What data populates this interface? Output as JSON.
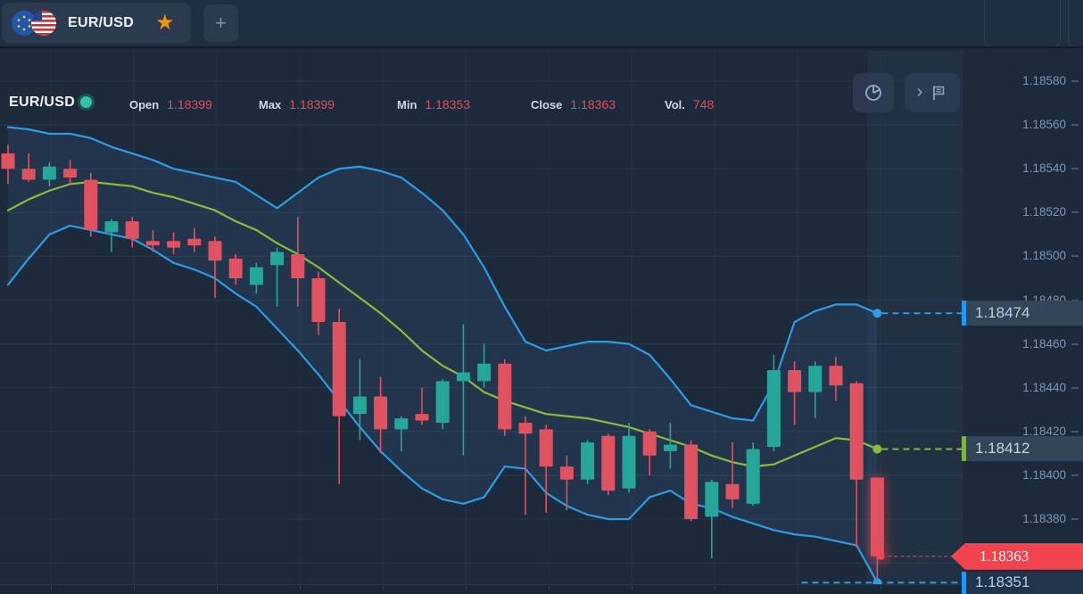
{
  "topbar": {
    "pair": "EUR/USD",
    "star_icon": "★",
    "add_button": "+"
  },
  "header": {
    "pair": "EUR/USD",
    "stats": [
      {
        "label": "Open",
        "value": "1.18399"
      },
      {
        "label": "Max",
        "value": "1.18399"
      },
      {
        "label": "Min",
        "value": "1.18353"
      },
      {
        "label": "Close",
        "value": "1.18363"
      },
      {
        "label": "Vol.",
        "value": "748"
      }
    ]
  },
  "colors": {
    "bull": "#26a69a",
    "bear": "#e0525f",
    "band": "#2d9ce3",
    "sma": "#8cba3a",
    "stat_value": "#e8495f",
    "label_blue": "#2196f3",
    "label_green": "#7cb342",
    "marker_red_bg": "#f2444f",
    "background": "#1c2a3b"
  },
  "axis": {
    "ticks": [
      "1.18580",
      "1.18560",
      "1.18540",
      "1.18520",
      "1.18500",
      "1.18480",
      "1.18460",
      "1.18440",
      "1.18420",
      "1.18400",
      "1.18380",
      "1.18360"
    ]
  },
  "markers": [
    {
      "value": "1.18474",
      "price": 1.18474,
      "kind": "bollinger-upper-end",
      "line": "#2d9ce3",
      "dot": true
    },
    {
      "value": "1.18412",
      "price": 1.18412,
      "kind": "sma-end",
      "line": "#8cba3a",
      "dot": true
    },
    {
      "value": "1.18363",
      "price": 1.18363,
      "kind": "last-price",
      "line": "#f2444f",
      "style": "thin",
      "glow": true
    },
    {
      "value": "1.18351",
      "price": 1.18351,
      "kind": "bollinger-lower-end",
      "line": "#2d9ce3",
      "dot": true,
      "extend": true
    }
  ],
  "chart_data": {
    "type": "candlestick",
    "pair": "EUR/USD",
    "last_candle": {
      "open": 1.18399,
      "high": 1.18399,
      "low": 1.18353,
      "close": 1.18363,
      "volume": 748
    },
    "y_axis": {
      "min": 1.1835,
      "max": 1.1859,
      "tick_step": 0.0002
    },
    "overlays": [
      "Bollinger Bands",
      "SMA"
    ],
    "candles": [
      [
        1.18547,
        1.18551,
        1.18533,
        1.1854
      ],
      [
        1.1854,
        1.18547,
        1.18534,
        1.18535
      ],
      [
        1.18535,
        1.18543,
        1.18532,
        1.18541
      ],
      [
        1.1854,
        1.18544,
        1.18533,
        1.18536
      ],
      [
        1.18535,
        1.18538,
        1.18509,
        1.18512
      ],
      [
        1.18511,
        1.18517,
        1.18502,
        1.18516
      ],
      [
        1.18516,
        1.18518,
        1.18504,
        1.18508
      ],
      [
        1.18507,
        1.18512,
        1.18502,
        1.18505
      ],
      [
        1.18507,
        1.18511,
        1.18501,
        1.18504
      ],
      [
        1.18508,
        1.18513,
        1.18502,
        1.18505
      ],
      [
        1.18507,
        1.18509,
        1.18481,
        1.18498
      ],
      [
        1.18499,
        1.18501,
        1.18487,
        1.1849
      ],
      [
        1.18487,
        1.18497,
        1.18483,
        1.18495
      ],
      [
        1.18496,
        1.18504,
        1.18477,
        1.18502
      ],
      [
        1.18501,
        1.18518,
        1.18477,
        1.1849
      ],
      [
        1.1849,
        1.18493,
        1.18464,
        1.1847
      ],
      [
        1.1847,
        1.18476,
        1.18396,
        1.18427
      ],
      [
        1.18428,
        1.18453,
        1.18416,
        1.18436
      ],
      [
        1.18436,
        1.18445,
        1.1841,
        1.18421
      ],
      [
        1.18421,
        1.18427,
        1.18411,
        1.18426
      ],
      [
        1.18428,
        1.1844,
        1.18423,
        1.18425
      ],
      [
        1.18424,
        1.18444,
        1.18421,
        1.18443
      ],
      [
        1.18443,
        1.18469,
        1.18409,
        1.18447
      ],
      [
        1.18443,
        1.1846,
        1.1844,
        1.18451
      ],
      [
        1.18451,
        1.18453,
        1.18418,
        1.18421
      ],
      [
        1.18424,
        1.18427,
        1.18382,
        1.18419
      ],
      [
        1.18421,
        1.18423,
        1.18383,
        1.18404
      ],
      [
        1.18404,
        1.18409,
        1.18384,
        1.18398
      ],
      [
        1.18398,
        1.18416,
        1.18396,
        1.18415
      ],
      [
        1.18418,
        1.18419,
        1.18391,
        1.18393
      ],
      [
        1.18394,
        1.18424,
        1.18392,
        1.18418
      ],
      [
        1.1842,
        1.18421,
        1.184,
        1.18409
      ],
      [
        1.18411,
        1.18424,
        1.18403,
        1.18414
      ],
      [
        1.18414,
        1.18416,
        1.18379,
        1.1838
      ],
      [
        1.18381,
        1.18398,
        1.18362,
        1.18397
      ],
      [
        1.18396,
        1.18415,
        1.18385,
        1.18389
      ],
      [
        1.18387,
        1.18415,
        1.18386,
        1.18412
      ],
      [
        1.18413,
        1.18455,
        1.18411,
        1.18448
      ],
      [
        1.18448,
        1.18452,
        1.18423,
        1.18438
      ],
      [
        1.18438,
        1.18452,
        1.18426,
        1.1845
      ],
      [
        1.1845,
        1.18454,
        1.18434,
        1.18441
      ],
      [
        1.18442,
        1.18443,
        1.18367,
        1.18398
      ],
      [
        1.18399,
        1.18399,
        1.18353,
        1.18363
      ]
    ],
    "bollinger": {
      "upper": [
        1.18559,
        1.18558,
        1.18556,
        1.18556,
        1.18554,
        1.1855,
        1.18547,
        1.18544,
        1.1854,
        1.18538,
        1.18536,
        1.18534,
        1.18528,
        1.18522,
        1.18529,
        1.18536,
        1.1854,
        1.18541,
        1.18539,
        1.18536,
        1.18529,
        1.18521,
        1.1851,
        1.18495,
        1.18477,
        1.18461,
        1.18457,
        1.18459,
        1.18461,
        1.18461,
        1.1846,
        1.18455,
        1.18444,
        1.18432,
        1.18429,
        1.18426,
        1.18425,
        1.18442,
        1.1847,
        1.18475,
        1.18478,
        1.18478,
        1.18474
      ],
      "middle": [
        1.18521,
        1.18526,
        1.1853,
        1.18533,
        1.18534,
        1.18533,
        1.18532,
        1.18529,
        1.18527,
        1.18524,
        1.18521,
        1.18516,
        1.18512,
        1.18506,
        1.18501,
        1.18495,
        1.18488,
        1.18481,
        1.18474,
        1.18466,
        1.18457,
        1.1845,
        1.18445,
        1.18438,
        1.18434,
        1.18431,
        1.18428,
        1.18427,
        1.18426,
        1.18424,
        1.18422,
        1.18419,
        1.18416,
        1.18413,
        1.18409,
        1.18406,
        1.18404,
        1.18405,
        1.18409,
        1.18413,
        1.18417,
        1.18416,
        1.18412
      ],
      "lower": [
        1.18487,
        1.18499,
        1.1851,
        1.18514,
        1.18512,
        1.1851,
        1.18508,
        1.18503,
        1.18497,
        1.18494,
        1.1849,
        1.18483,
        1.18477,
        1.18467,
        1.18457,
        1.18446,
        1.18434,
        1.18422,
        1.18411,
        1.18402,
        1.18394,
        1.18389,
        1.18387,
        1.1839,
        1.18404,
        1.18403,
        1.18392,
        1.18386,
        1.18382,
        1.1838,
        1.1838,
        1.1839,
        1.18393,
        1.18387,
        1.18385,
        1.18381,
        1.18378,
        1.18375,
        1.18373,
        1.18372,
        1.1837,
        1.18368,
        1.18351
      ]
    }
  }
}
